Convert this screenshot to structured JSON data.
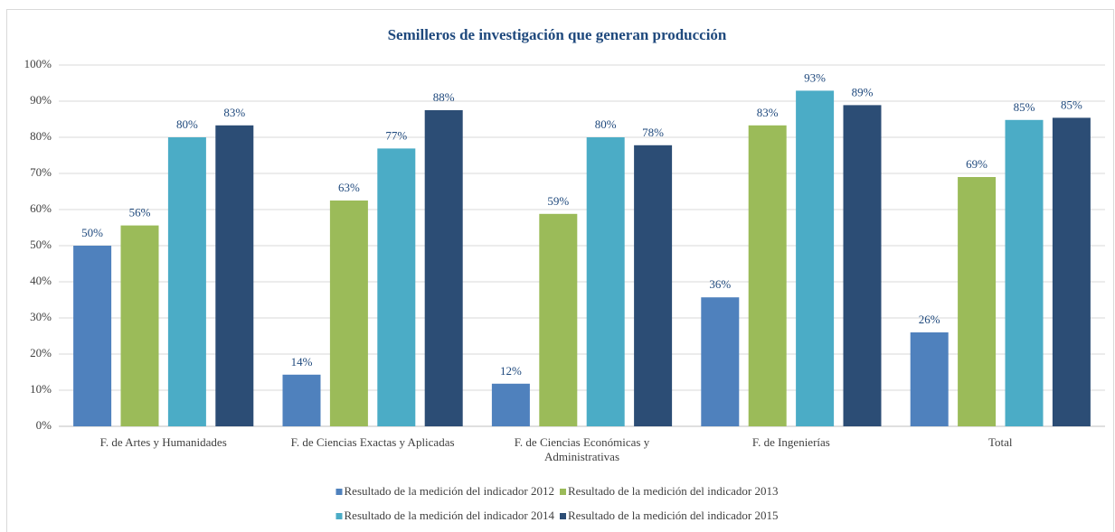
{
  "chart_data": {
    "type": "bar",
    "title": "Semilleros de investigación que generan producción",
    "categories": [
      "F. de Artes y Humanidades",
      "F. de Ciencias Exactas y Aplicadas",
      "F. de Ciencias Económicas y Administrativas",
      "F. de Ingenierías",
      "Total"
    ],
    "series": [
      {
        "name": "Resultado de la medición del indicador 2012",
        "color": "#4f81bd",
        "values": [
          50,
          14.3,
          11.8,
          35.7,
          26
        ],
        "value_labels": [
          "50%",
          "14%",
          "12%",
          "36%",
          "26%"
        ]
      },
      {
        "name": "Resultado de la medición del indicador 2013",
        "color": "#9bbb59",
        "values": [
          55.6,
          62.5,
          58.8,
          83.3,
          69
        ],
        "value_labels": [
          "56%",
          "63%",
          "59%",
          "83%",
          "69%"
        ]
      },
      {
        "name": "Resultado de la medición del indicador 2014",
        "color": "#4bacc6",
        "values": [
          80,
          76.9,
          80,
          92.9,
          84.8
        ],
        "value_labels": [
          "80%",
          "77%",
          "80%",
          "93%",
          "85%"
        ]
      },
      {
        "name": "Resultado de la medición del indicador 2015",
        "color": "#2c4d75",
        "values": [
          83.3,
          87.5,
          77.8,
          88.9,
          85.4
        ],
        "value_labels": [
          "83%",
          "88%",
          "78%",
          "89%",
          "85%"
        ]
      }
    ],
    "ylim": [
      0,
      100
    ],
    "yticks": [
      {
        "value": 0,
        "label": "0%"
      },
      {
        "value": 10,
        "label": "10%"
      },
      {
        "value": 20,
        "label": "20%"
      },
      {
        "value": 30,
        "label": "30%"
      },
      {
        "value": 40,
        "label": "40%"
      },
      {
        "value": 50,
        "label": "50%"
      },
      {
        "value": 60,
        "label": "60%"
      },
      {
        "value": 70,
        "label": "70%"
      },
      {
        "value": 80,
        "label": "80%"
      },
      {
        "value": 90,
        "label": "90%"
      },
      {
        "value": 100,
        "label": "100%"
      }
    ],
    "grid": true,
    "legend": "bottom"
  }
}
